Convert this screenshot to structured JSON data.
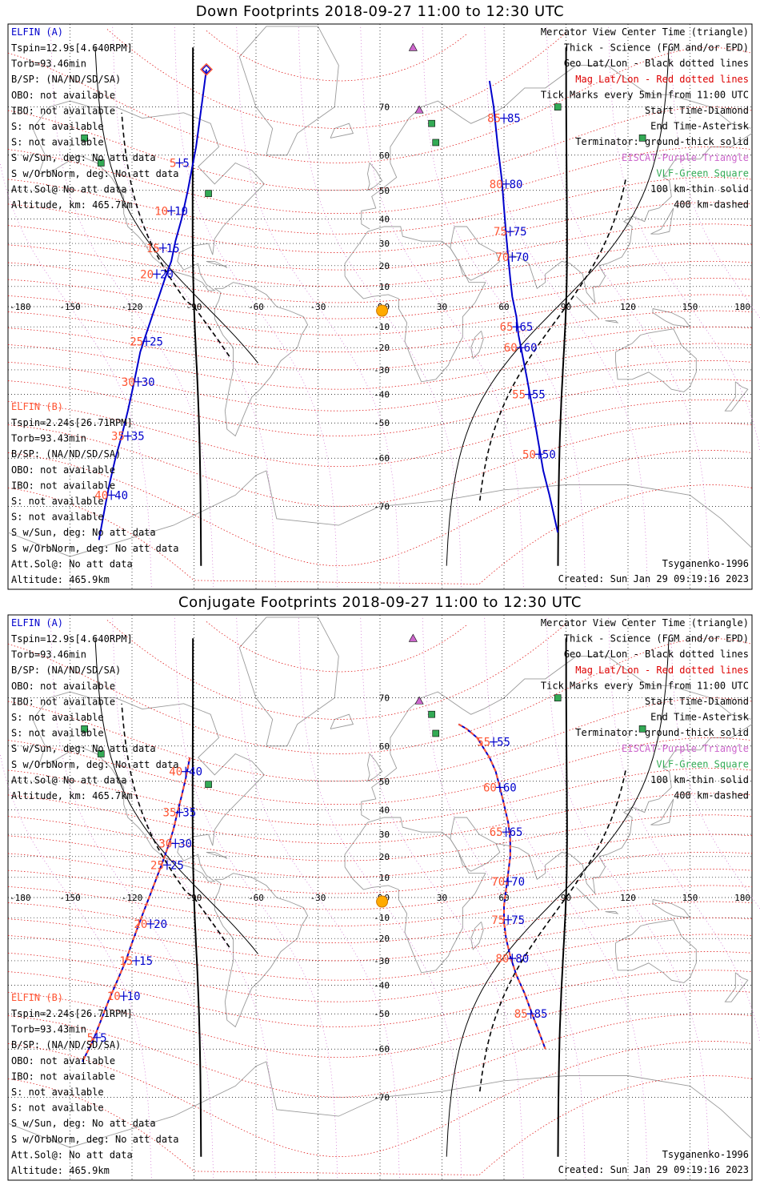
{
  "colors": {
    "elfin_a": "#0000cc",
    "elfin_b": "#ff5533",
    "mag_grid": "#dd0000",
    "geo_grid": "#000000",
    "eiscat": "#cc66cc",
    "vlf": "#33aa55",
    "coast": "#9a9a9a",
    "sun": "#ffaa00"
  },
  "common": {
    "a_header": "ELFIN (A)",
    "b_header": "ELFIN (B)",
    "a_info": [
      "Tspin=12.9s[4.640RPM]",
      "Torb=93.46min",
      "B/SP: (NA/ND/SD/SA)",
      "OBO: not available",
      "IBO: not available",
      "S: not available",
      "S: not available",
      "S w/Sun, deg: No att data",
      "S w/OrbNorm, deg: No att data",
      "Att.Sol@ No att data",
      "Altitude, km: 465.7km"
    ],
    "b_info": [
      "Tspin=2.24s[26.71RPM]",
      "Torb=93.43min",
      "B/SP: (NA/ND/SD/SA)",
      "OBO: not available",
      "IBO: not available",
      "S: not available",
      "S: not available",
      "S w/Sun, deg: No att data",
      "S w/OrbNorm, deg: No att data",
      "Att.Sol@: No att data",
      "Altitude: 465.9km"
    ],
    "legend": [
      {
        "text": "Mercator View Center Time (triangle)",
        "color": "#000000"
      },
      {
        "text": "Thick - Science (FGM and/or EPD)",
        "color": "#000000"
      },
      {
        "text": "Geo Lat/Lon - Black dotted lines",
        "color": "#000000"
      },
      {
        "text": "Mag Lat/Lon - Red dotted lines",
        "color": "#dd0000"
      },
      {
        "text": "Tick Marks every 5min from 11:00 UTC",
        "color": "#000000"
      },
      {
        "text": "Start Time-Diamond",
        "color": "#000000"
      },
      {
        "text": "End Time-Asterisk",
        "color": "#000000"
      },
      {
        "text": "Terminator: ground-thick solid",
        "color": "#000000"
      },
      {
        "text": "EISCAT-Purple Triangle",
        "color": "#cc66cc"
      },
      {
        "text": "VLF-Green Square",
        "color": "#33aa55"
      },
      {
        "text": "100 km-thin solid",
        "color": "#000000"
      },
      {
        "text": "400 km-dashed",
        "color": "#000000"
      }
    ],
    "model": "Tsyganenko-1996",
    "created": "Created: Sun Jan 29 09:19:16 2023",
    "lon_ticks": [
      "-180",
      "-150",
      "-120",
      "-90",
      "-60",
      "-30",
      "0",
      "30",
      "60",
      "90",
      "120",
      "150",
      "180"
    ],
    "lat_ticks": [
      "70",
      "60",
      "50",
      "40",
      "30",
      "20",
      "10",
      "0",
      "-10",
      "-20",
      "-30",
      "-40",
      "-50",
      "-60",
      "-70"
    ]
  },
  "panels": [
    {
      "id": "down",
      "title": "Down Footprints 2018-09-27 11:00 to 12:30 UTC",
      "track_a_west": [
        [
          -84,
          75.5
        ],
        [
          -86,
          71
        ],
        [
          -89,
          62
        ],
        [
          -93,
          50
        ],
        [
          -96,
          40
        ],
        [
          -99,
          31
        ],
        [
          -101,
          22
        ],
        [
          -104,
          14
        ],
        [
          -107,
          5
        ],
        [
          -110,
          -4
        ],
        [
          -113,
          -13
        ],
        [
          -116,
          -22
        ],
        [
          -118,
          -31
        ],
        [
          -120,
          -39
        ],
        [
          -122,
          -46
        ],
        [
          -125,
          -54
        ],
        [
          -128,
          -60
        ],
        [
          -131,
          -66
        ],
        [
          -133,
          -70
        ],
        [
          -136,
          -75
        ]
      ],
      "track_a_east": [
        [
          53,
          74
        ],
        [
          55,
          70
        ],
        [
          57,
          62
        ],
        [
          59,
          53
        ],
        [
          60,
          44
        ],
        [
          61,
          34
        ],
        [
          62,
          24
        ],
        [
          63,
          14
        ],
        [
          64,
          5
        ],
        [
          66,
          -5
        ],
        [
          67,
          -14
        ],
        [
          69,
          -24
        ],
        [
          71,
          -33
        ],
        [
          73,
          -42
        ],
        [
          75,
          -50
        ],
        [
          77,
          -57
        ],
        [
          79,
          -63
        ],
        [
          82,
          -68
        ],
        [
          86,
          -74
        ]
      ],
      "labels_west": [
        {
          "t": "5",
          "lon": -97,
          "lat": 58
        },
        {
          "t": "10",
          "lon": -101,
          "lat": 43
        },
        {
          "t": "15",
          "lon": -105,
          "lat": 28
        },
        {
          "t": "20",
          "lon": -108,
          "lat": 16
        },
        {
          "t": "25",
          "lon": -113,
          "lat": -17
        },
        {
          "t": "30",
          "lon": -117,
          "lat": -35
        },
        {
          "t": "35",
          "lon": -122,
          "lat": -54
        },
        {
          "t": "40",
          "lon": -130,
          "lat": -68
        }
      ],
      "labels_east": [
        {
          "t": "85",
          "lon": 60,
          "lat": 68
        },
        {
          "t": "80",
          "lon": 61,
          "lat": 52
        },
        {
          "t": "75",
          "lon": 63,
          "lat": 35
        },
        {
          "t": "70",
          "lon": 64,
          "lat": 24
        },
        {
          "t": "65",
          "lon": 66,
          "lat": -10
        },
        {
          "t": "60",
          "lon": 68,
          "lat": -20
        },
        {
          "t": "55",
          "lon": 72,
          "lat": -40
        },
        {
          "t": "50",
          "lon": 77,
          "lat": -59
        }
      ],
      "start_marker": {
        "lon": -84,
        "lat": 75.5
      }
    },
    {
      "id": "conjugate",
      "title": "Conjugate Footprints 2018-09-27 11:00 to 12:30 UTC",
      "track_a_west": [
        [
          -92,
          57
        ],
        [
          -94,
          51
        ],
        [
          -96,
          45
        ],
        [
          -98,
          39
        ],
        [
          -100,
          32
        ],
        [
          -102,
          26
        ],
        [
          -105,
          18
        ],
        [
          -108,
          10
        ],
        [
          -111,
          2
        ],
        [
          -114,
          -6
        ],
        [
          -117,
          -14
        ],
        [
          -120,
          -22
        ],
        [
          -123,
          -30
        ],
        [
          -127,
          -38
        ],
        [
          -131,
          -45
        ],
        [
          -135,
          -52
        ],
        [
          -139,
          -58
        ],
        [
          -144,
          -63
        ]
      ],
      "track_a_east": [
        [
          38,
          65
        ],
        [
          42,
          64
        ],
        [
          47,
          62
        ],
        [
          53,
          57
        ],
        [
          56,
          53
        ],
        [
          58,
          48
        ],
        [
          60,
          42
        ],
        [
          62,
          35
        ],
        [
          63,
          28
        ],
        [
          63,
          20
        ],
        [
          62,
          12
        ],
        [
          61,
          4
        ],
        [
          60,
          -4
        ],
        [
          60,
          -12
        ],
        [
          61,
          -20
        ],
        [
          63,
          -28
        ],
        [
          66,
          -36
        ],
        [
          70,
          -43
        ],
        [
          73,
          -49
        ],
        [
          76,
          -54
        ],
        [
          80,
          -60
        ]
      ],
      "labels_west": [
        {
          "t": "40",
          "lon": -94,
          "lat": 53
        },
        {
          "t": "35",
          "lon": -97,
          "lat": 39
        },
        {
          "t": "30",
          "lon": -99,
          "lat": 26
        },
        {
          "t": "25",
          "lon": -103,
          "lat": 16
        },
        {
          "t": "20",
          "lon": -111,
          "lat": -13
        },
        {
          "t": "15",
          "lon": -118,
          "lat": -30
        },
        {
          "t": "10",
          "lon": -124,
          "lat": -44
        },
        {
          "t": "5",
          "lon": -137,
          "lat": -57
        }
      ],
      "labels_east": [
        {
          "t": "55",
          "lon": 55,
          "lat": 61
        },
        {
          "t": "60",
          "lon": 58,
          "lat": 48
        },
        {
          "t": "65",
          "lon": 61,
          "lat": 31
        },
        {
          "t": "70",
          "lon": 62,
          "lat": 8
        },
        {
          "t": "75",
          "lon": 62,
          "lat": -11
        },
        {
          "t": "80",
          "lon": 64,
          "lat": -29
        },
        {
          "t": "85",
          "lon": 73,
          "lat": -50
        }
      ],
      "start_marker": null
    }
  ],
  "eiscat_sites": [
    {
      "lon": 16,
      "lat": 78
    },
    {
      "lon": 19,
      "lat": 69.5
    }
  ],
  "vlf_sites": [
    {
      "lon": -143,
      "lat": 64
    },
    {
      "lon": -135,
      "lat": 58
    },
    {
      "lon": -83,
      "lat": 49
    },
    {
      "lon": 25,
      "lat": 67
    },
    {
      "lon": 27,
      "lat": 63
    },
    {
      "lon": 86,
      "lat": 70
    },
    {
      "lon": 127,
      "lat": 64
    }
  ],
  "sun": {
    "lon": 1,
    "lat": -2
  }
}
